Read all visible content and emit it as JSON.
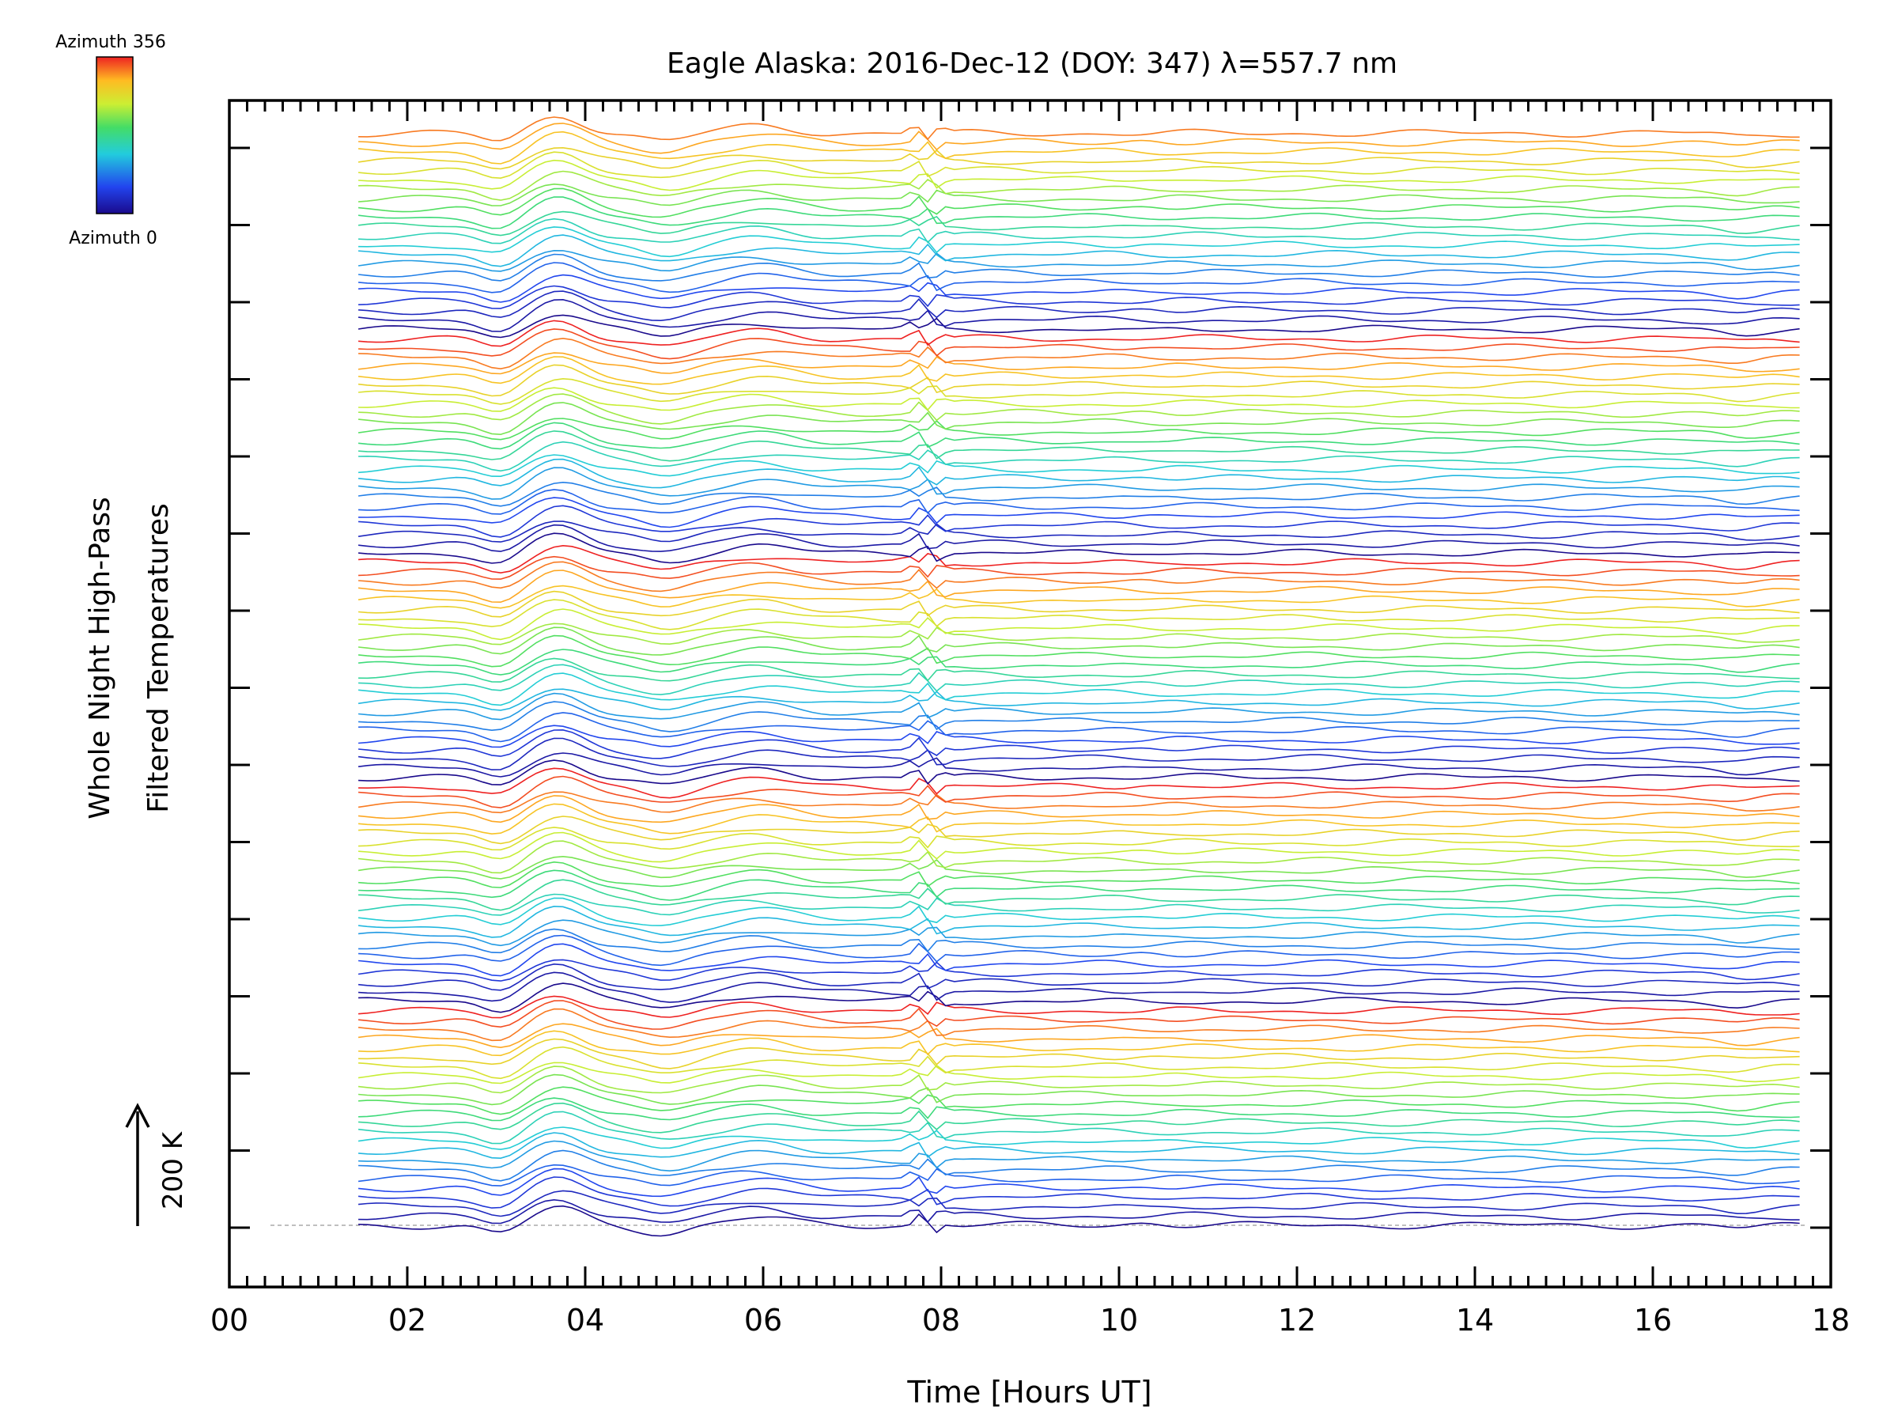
{
  "chart_data": {
    "type": "line",
    "title": "Eagle Alaska: 2016-Dec-12 (DOY: 347) λ=557.7 nm",
    "xlabel": "Time [Hours UT]",
    "ylabel_line1": "Whole Night High-Pass",
    "ylabel_line2": "Filtered Temperatures",
    "xlim": [
      0,
      18
    ],
    "x_ticks": [
      "00",
      "02",
      "04",
      "06",
      "08",
      "10",
      "12",
      "14",
      "16",
      "18"
    ],
    "data_time_range": [
      1.45,
      17.7
    ],
    "scale_label": "200 K",
    "colorbar": {
      "top_label": "Azimuth 356",
      "bottom_label": "Azimuth 0",
      "colors": [
        "#1a0a8c",
        "#2244ee",
        "#22ccdd",
        "#44dd66",
        "#ccee33",
        "#ffbb22",
        "#ee2222"
      ]
    },
    "series_count": 118,
    "azimuth_range": [
      0,
      356
    ]
  }
}
